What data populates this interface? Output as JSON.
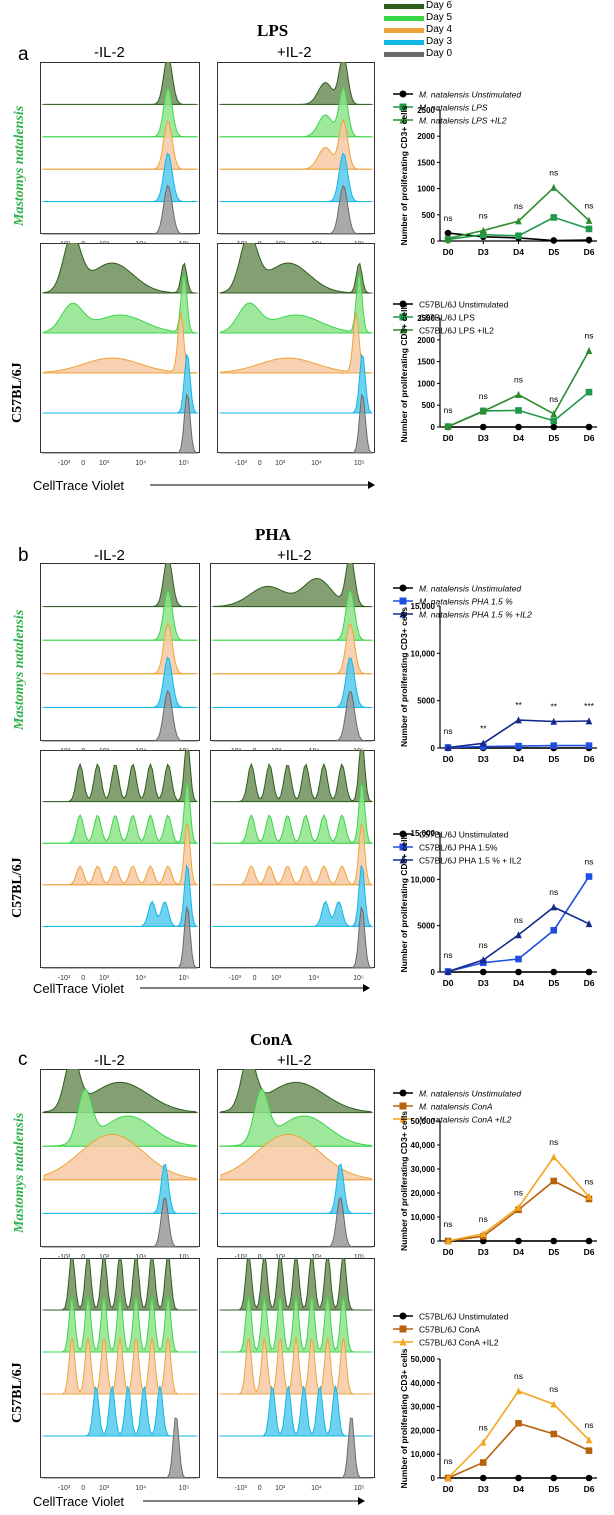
{
  "legend": {
    "items": [
      {
        "label": "Day 6",
        "color": "#2f5e1f"
      },
      {
        "label": "Day 5",
        "color": "#39d64a"
      },
      {
        "label": "Day 4",
        "color": "#f0a33a"
      },
      {
        "label": "Day 3",
        "color": "#12b7e6"
      },
      {
        "label": "Day 0",
        "color": "#6a6a6a"
      }
    ]
  },
  "sections": [
    {
      "title": "LPS",
      "letter": "a",
      "col_left": "-IL-2",
      "col_right": "+IL-2",
      "row_top_label": "Mastomys natalensis",
      "row_bottom_label": "C57BL/6J",
      "xaxis_label": "CellTrace Violet"
    },
    {
      "title": "PHA",
      "letter": "b",
      "col_left": "-IL-2",
      "col_right": "+IL-2",
      "row_top_label": "Mastomys natalensis",
      "row_bottom_label": "C57BL/6J",
      "xaxis_label": "CellTrace Violet"
    },
    {
      "title": "ConA",
      "letter": "c",
      "col_left": "-IL-2",
      "col_right": "+IL-2",
      "row_top_label": "Mastomys natalensis",
      "row_bottom_label": "C57BL/6J",
      "xaxis_label": "CellTrace Violet"
    }
  ],
  "flow_axis": {
    "ticks": [
      "-10³",
      "0",
      "10³",
      "10⁴",
      "10⁵"
    ]
  },
  "chart_data": [
    {
      "type": "line",
      "title": "",
      "ylabel": "Number of proliferating CD3+ cells",
      "xlabel": "",
      "categories": [
        "D0",
        "D3",
        "D4",
        "D5",
        "D6"
      ],
      "ylim": [
        0,
        2500
      ],
      "yticks": [
        "0",
        "500",
        "1000",
        "1500",
        "2000",
        "2500"
      ],
      "series": [
        {
          "name": "M. natalensis Unstimulated",
          "color": "#000000",
          "marker": "circle",
          "values": [
            150,
            80,
            60,
            10,
            20
          ]
        },
        {
          "name": "M. natalensis LPS",
          "color": "#1f9a4a",
          "marker": "square",
          "values": [
            30,
            120,
            100,
            450,
            230
          ]
        },
        {
          "name": "M. natalensis LPS +IL2",
          "color": "#2e8b2e",
          "marker": "triangle",
          "values": [
            50,
            200,
            380,
            1020,
            390
          ]
        }
      ],
      "annotations": [
        "ns",
        "ns",
        "ns",
        "ns",
        "ns"
      ]
    },
    {
      "type": "line",
      "title": "",
      "ylabel": "Number of proliferating CD3+ cells",
      "xlabel": "",
      "categories": [
        "D0",
        "D3",
        "D4",
        "D5",
        "D6"
      ],
      "ylim": [
        0,
        2500
      ],
      "yticks": [
        "0",
        "500",
        "1000",
        "1500",
        "2000",
        "2500"
      ],
      "series": [
        {
          "name": "C57BL/6J Unstimulated",
          "color": "#000000",
          "marker": "circle",
          "values": [
            0,
            0,
            0,
            0,
            0
          ]
        },
        {
          "name": "C57BL/6J LPS",
          "color": "#1f9a4a",
          "marker": "square",
          "values": [
            10,
            370,
            380,
            140,
            800
          ]
        },
        {
          "name": "C57BL/6J LPS +IL2",
          "color": "#2e8b2e",
          "marker": "triangle",
          "values": [
            10,
            360,
            740,
            300,
            1750
          ]
        }
      ],
      "annotations": [
        "ns",
        "ns",
        "ns",
        "ns",
        "ns"
      ]
    },
    {
      "type": "line",
      "title": "",
      "ylabel": "Number of proliferating CD3+ cells",
      "xlabel": "",
      "categories": [
        "D0",
        "D3",
        "D4",
        "D5",
        "D6"
      ],
      "ylim": [
        0,
        15000
      ],
      "yticks": [
        "0",
        "5000",
        "10,000",
        "15,000"
      ],
      "series": [
        {
          "name": "M. natalensis Unstimulated",
          "color": "#000000",
          "marker": "circle",
          "values": [
            0,
            0,
            0,
            0,
            0
          ]
        },
        {
          "name": "M. natalensis PHA 1.5 %",
          "color": "#1f4fe0",
          "marker": "square",
          "values": [
            50,
            150,
            200,
            250,
            250
          ]
        },
        {
          "name": "M. natalensis PHA 1.5 % +IL2",
          "color": "#142a8c",
          "marker": "triangle",
          "values": [
            50,
            500,
            2950,
            2800,
            2850
          ]
        }
      ],
      "annotations": [
        "ns",
        "**",
        "**",
        "**",
        "***"
      ]
    },
    {
      "type": "line",
      "title": "",
      "ylabel": "Number of proliferating CD3+ cells",
      "xlabel": "",
      "categories": [
        "D0",
        "D3",
        "D4",
        "D5",
        "D6"
      ],
      "ylim": [
        0,
        15000
      ],
      "yticks": [
        "0",
        "5000",
        "10,000",
        "15,000"
      ],
      "series": [
        {
          "name": "C57BL/6J Unstimulated",
          "color": "#000000",
          "marker": "circle",
          "values": [
            0,
            0,
            0,
            0,
            0
          ]
        },
        {
          "name": "C57BL/6J PHA 1.5%",
          "color": "#1f4fe0",
          "marker": "square",
          "values": [
            50,
            1000,
            1400,
            4500,
            10300
          ]
        },
        {
          "name": "C57BL/6J PHA 1.5 % + IL2",
          "color": "#142a8c",
          "marker": "triangle",
          "values": [
            50,
            1300,
            4000,
            7000,
            5200
          ]
        }
      ],
      "annotations": [
        "ns",
        "ns",
        "ns",
        "ns",
        "ns"
      ]
    },
    {
      "type": "line",
      "title": "",
      "ylabel": "Number of proliferating CD3+ cells",
      "xlabel": "",
      "categories": [
        "D0",
        "D3",
        "D4",
        "D5",
        "D6"
      ],
      "ylim": [
        0,
        50000
      ],
      "yticks": [
        "0",
        "10,000",
        "20,000",
        "30,000",
        "40,000",
        "50,000"
      ],
      "series": [
        {
          "name": "M. natalensis Unstimulated",
          "color": "#000000",
          "marker": "circle",
          "values": [
            0,
            0,
            0,
            0,
            0
          ]
        },
        {
          "name": "M. natalensis ConA",
          "color": "#b8620f",
          "marker": "square",
          "values": [
            0,
            2000,
            13000,
            25000,
            17500
          ]
        },
        {
          "name": "M. natalensis ConA +IL2",
          "color": "#f2a51d",
          "marker": "triangle",
          "values": [
            0,
            3000,
            14000,
            35000,
            18500
          ]
        }
      ],
      "annotations": [
        "ns",
        "ns",
        "ns",
        "ns",
        "ns"
      ]
    },
    {
      "type": "line",
      "title": "",
      "ylabel": "Number of proliferating CD3+ cells",
      "xlabel": "",
      "categories": [
        "D0",
        "D3",
        "D4",
        "D5",
        "D6"
      ],
      "ylim": [
        0,
        50000
      ],
      "yticks": [
        "0",
        "10,000",
        "20,000",
        "30,000",
        "40,000",
        "50,000"
      ],
      "series": [
        {
          "name": "C57BL/6J Unstimulated",
          "color": "#000000",
          "marker": "circle",
          "values": [
            0,
            0,
            0,
            0,
            0
          ]
        },
        {
          "name": "C57BL/6J ConA",
          "color": "#b8620f",
          "marker": "square",
          "values": [
            0,
            6500,
            23000,
            18500,
            11500
          ]
        },
        {
          "name": "C57BL/6J ConA +IL2",
          "color": "#f2a51d",
          "marker": "triangle",
          "values": [
            0,
            15000,
            36500,
            31000,
            16000
          ]
        }
      ],
      "annotations": [
        "ns",
        "ns",
        "ns",
        "ns",
        "ns"
      ]
    }
  ]
}
